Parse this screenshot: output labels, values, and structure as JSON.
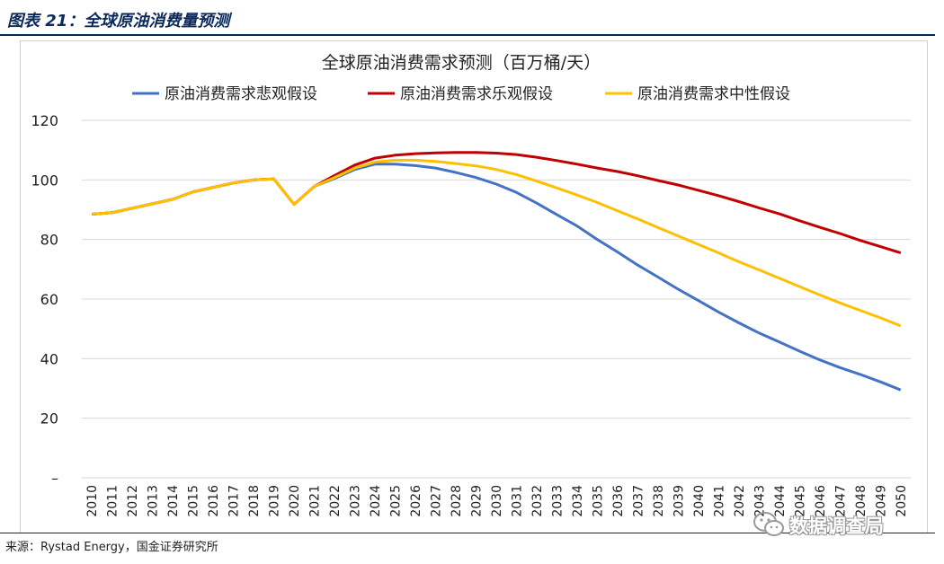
{
  "figure": {
    "title": "图表 21：全球原油消费量预测",
    "source": "来源：Rystad Energy，国金证券研究所"
  },
  "watermark": {
    "text": "数据调查局",
    "icon": "wechat-logo-icon"
  },
  "colors": {
    "pessimistic": "#4472c4",
    "optimistic": "#c00000",
    "neutral": "#ffc000",
    "header": "#0b2a5c",
    "grid": "#d9d9d9"
  },
  "chart_data": {
    "type": "line",
    "title": "全球原油消费需求预测（百万桶/天）",
    "xlabel": "",
    "ylabel": "",
    "ylim": [
      0,
      120
    ],
    "yticks": [
      0,
      20,
      40,
      60,
      80,
      100,
      120
    ],
    "ytick_labels": [
      "–",
      "20",
      "40",
      "60",
      "80",
      "100",
      "120"
    ],
    "grid": true,
    "legend_position": "top",
    "x": [
      2010,
      2011,
      2012,
      2013,
      2014,
      2015,
      2016,
      2017,
      2018,
      2019,
      2020,
      2021,
      2022,
      2023,
      2024,
      2025,
      2026,
      2027,
      2028,
      2029,
      2030,
      2031,
      2032,
      2033,
      2034,
      2035,
      2036,
      2037,
      2038,
      2039,
      2040,
      2041,
      2042,
      2043,
      2044,
      2045,
      2046,
      2047,
      2048,
      2049,
      2050
    ],
    "series": [
      {
        "name": "原油消费需求悲观假设",
        "color": "#4472c4",
        "values": [
          88.5,
          89.0,
          90.5,
          92.0,
          93.5,
          96.0,
          97.5,
          99.0,
          100.0,
          100.3,
          91.8,
          97.8,
          100.5,
          103.5,
          105.3,
          105.3,
          104.8,
          104.0,
          102.5,
          100.8,
          98.6,
          95.8,
          92.2,
          88.3,
          84.5,
          80.0,
          75.8,
          71.4,
          67.4,
          63.3,
          59.5,
          55.6,
          52.0,
          48.6,
          45.6,
          42.5,
          39.6,
          37.0,
          34.7,
          32.2,
          29.5
        ]
      },
      {
        "name": "原油消费需求乐观假设",
        "color": "#c00000",
        "values": [
          88.5,
          89.0,
          90.5,
          92.0,
          93.5,
          96.0,
          97.5,
          99.0,
          100.0,
          100.3,
          91.8,
          97.8,
          101.5,
          105.0,
          107.3,
          108.3,
          108.8,
          109.1,
          109.2,
          109.2,
          109.0,
          108.5,
          107.6,
          106.5,
          105.3,
          104.0,
          102.8,
          101.4,
          99.8,
          98.3,
          96.5,
          94.7,
          92.7,
          90.6,
          88.6,
          86.3,
          84.1,
          82.0,
          79.7,
          77.6,
          75.5
        ]
      },
      {
        "name": "原油消费需求中性假设",
        "color": "#ffc000",
        "values": [
          88.5,
          89.0,
          90.5,
          92.0,
          93.5,
          96.0,
          97.5,
          99.0,
          100.0,
          100.3,
          91.8,
          97.8,
          100.8,
          104.0,
          106.0,
          106.6,
          106.6,
          106.2,
          105.5,
          104.7,
          103.5,
          101.8,
          99.6,
          97.3,
          94.9,
          92.4,
          89.6,
          86.9,
          84.0,
          81.2,
          78.3,
          75.5,
          72.5,
          69.8,
          67.0,
          64.2,
          61.4,
          58.7,
          56.2,
          53.7,
          51.0
        ]
      }
    ]
  }
}
